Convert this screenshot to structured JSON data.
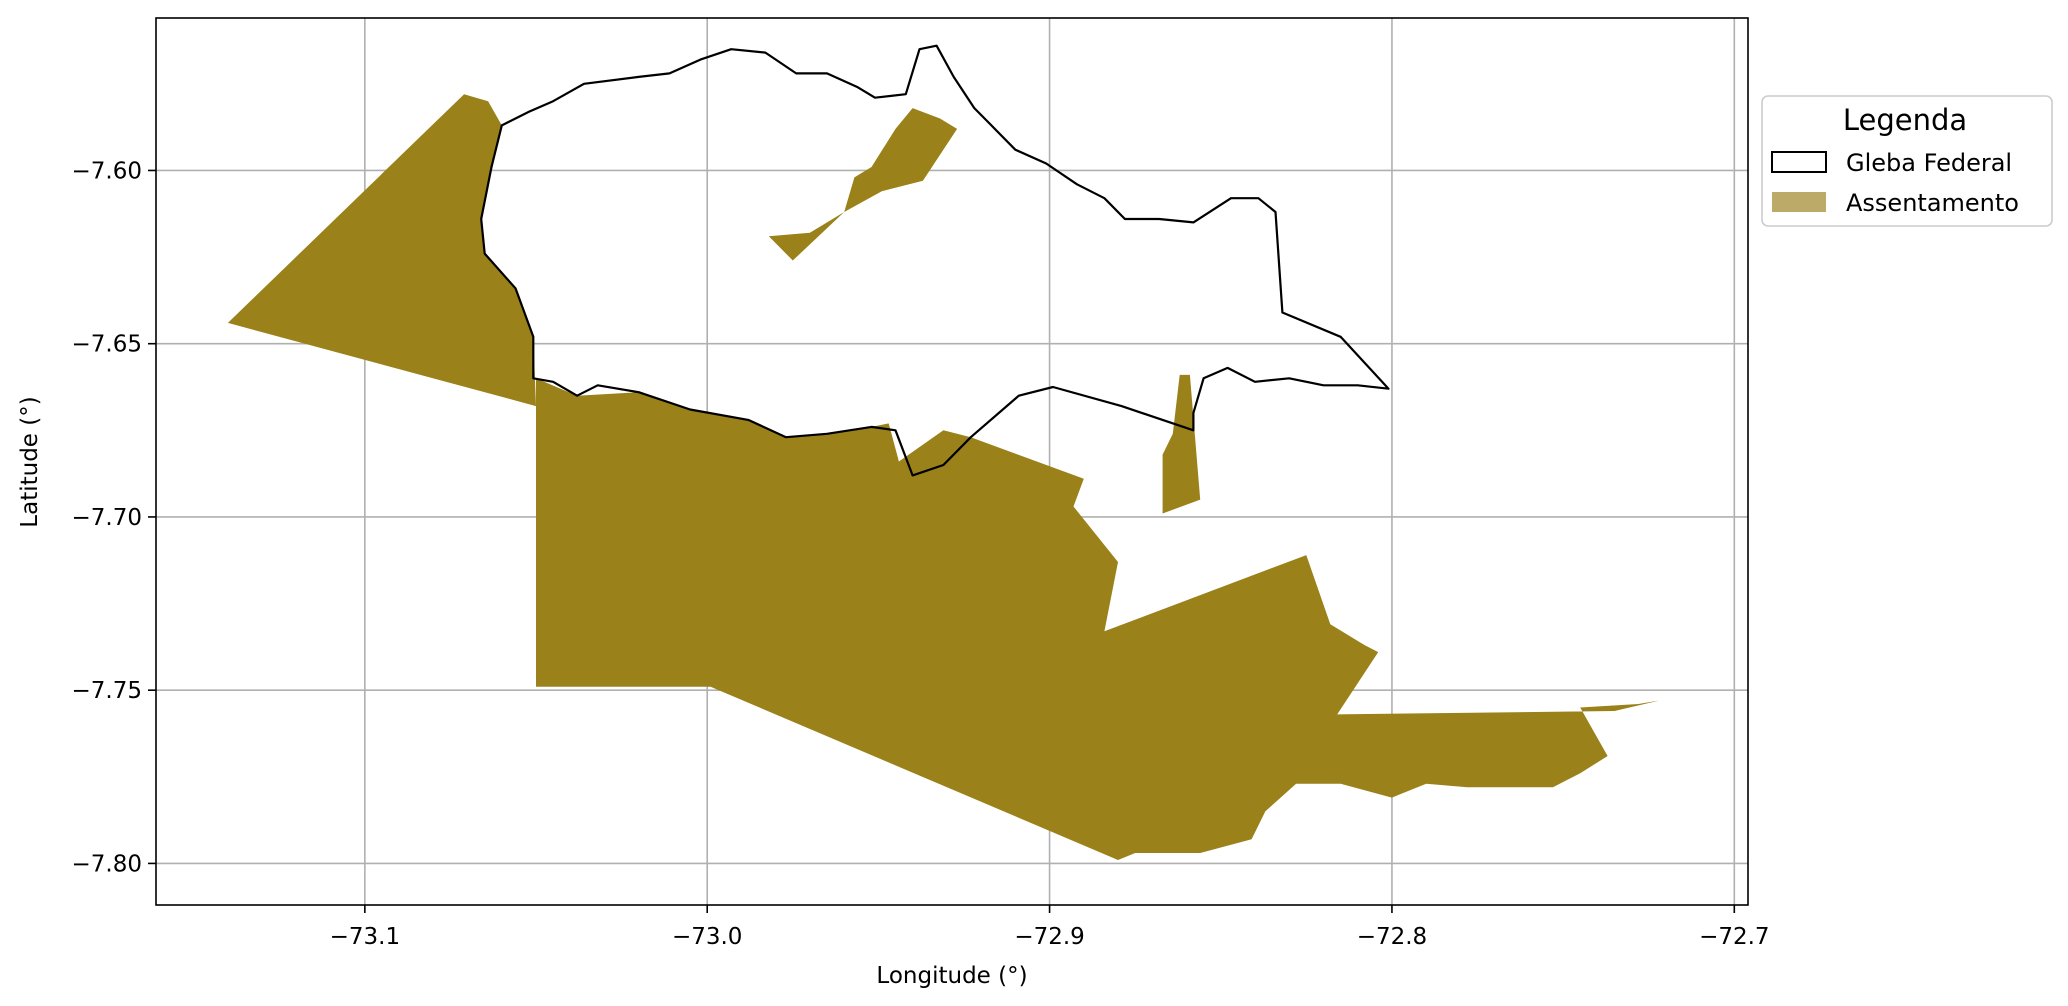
{
  "legend": {
    "title": "Legenda",
    "entries": [
      {
        "label": "Gleba Federal",
        "style": "outline",
        "stroke": "#000000",
        "fill": "none"
      },
      {
        "label": "Assentamento",
        "style": "filled",
        "fill": "#9a8119"
      }
    ]
  },
  "colors": {
    "assentamento": "#9a8119",
    "assentamento_legend": "#bcab68",
    "gleba_outline": "#000000",
    "grid": "#b0b0b0"
  },
  "axes": {
    "xlabel": "Longitude (°)",
    "ylabel": "Latitude (°)",
    "xlim": [
      -73.161,
      -72.696
    ],
    "ylim": [
      -7.812,
      -7.556
    ],
    "xticks": [
      -73.1,
      -73.0,
      -72.9,
      -72.8,
      -72.7
    ],
    "xtick_labels": [
      "−73.1",
      "−73.0",
      "−72.9",
      "−72.8",
      "−72.7"
    ],
    "yticks": [
      -7.6,
      -7.65,
      -7.7,
      -7.75,
      -7.8
    ],
    "ytick_labels": [
      "−7.60",
      "−7.65",
      "−7.70",
      "−7.75",
      "−7.80"
    ],
    "grid": true
  },
  "chart_data": {
    "type": "map",
    "xlabel": "Longitude (°)",
    "ylabel": "Latitude (°)",
    "xlim": [
      -73.161,
      -72.696
    ],
    "ylim": [
      -7.812,
      -7.556
    ],
    "grid": true,
    "legend_title": "Legenda",
    "legend_position": "upper-right-outside",
    "layers": [
      {
        "name": "Gleba Federal",
        "kind": "outline",
        "color": "#000000",
        "polygons": [
          [
            [
              -73.0508,
              -7.648
            ],
            [
              -73.0508,
              -7.66
            ],
            [
              -73.045,
              -7.661
            ],
            [
              -73.038,
              -7.665
            ],
            [
              -73.032,
              -7.662
            ],
            [
              -73.02,
              -7.664
            ],
            [
              -73.005,
              -7.669
            ],
            [
              -72.988,
              -7.672
            ],
            [
              -72.977,
              -7.677
            ],
            [
              -72.965,
              -7.676
            ],
            [
              -72.952,
              -7.674
            ],
            [
              -72.945,
              -7.675
            ],
            [
              -72.94,
              -7.688
            ],
            [
              -72.931,
              -7.685
            ],
            [
              -72.923,
              -7.677
            ],
            [
              -72.909,
              -7.665
            ],
            [
              -72.899,
              -7.6625
            ],
            [
              -72.879,
              -7.668
            ],
            [
              -72.858,
              -7.675
            ],
            [
              -72.858,
              -7.67
            ],
            [
              -72.855,
              -7.66
            ],
            [
              -72.848,
              -7.657
            ],
            [
              -72.84,
              -7.661
            ],
            [
              -72.83,
              -7.66
            ],
            [
              -72.82,
              -7.662
            ],
            [
              -72.81,
              -7.662
            ],
            [
              -72.801,
              -7.663
            ],
            [
              -72.815,
              -7.648
            ],
            [
              -72.832,
              -7.641
            ],
            [
              -72.834,
              -7.612
            ],
            [
              -72.839,
              -7.608
            ],
            [
              -72.847,
              -7.608
            ],
            [
              -72.858,
              -7.615
            ],
            [
              -72.868,
              -7.614
            ],
            [
              -72.878,
              -7.614
            ],
            [
              -72.884,
              -7.608
            ],
            [
              -72.892,
              -7.604
            ],
            [
              -72.901,
              -7.598
            ],
            [
              -72.91,
              -7.594
            ],
            [
              -72.917,
              -7.587
            ],
            [
              -72.922,
              -7.582
            ],
            [
              -72.928,
              -7.573
            ],
            [
              -72.933,
              -7.564
            ],
            [
              -72.938,
              -7.565
            ],
            [
              -72.942,
              -7.578
            ],
            [
              -72.951,
              -7.579
            ],
            [
              -72.956,
              -7.576
            ],
            [
              -72.965,
              -7.572
            ],
            [
              -72.974,
              -7.572
            ],
            [
              -72.983,
              -7.566
            ],
            [
              -72.993,
              -7.565
            ],
            [
              -73.002,
              -7.568
            ],
            [
              -73.011,
              -7.572
            ],
            [
              -73.02,
              -7.573
            ],
            [
              -73.036,
              -7.575
            ],
            [
              -73.045,
              -7.58
            ],
            [
              -73.052,
              -7.583
            ],
            [
              -73.06,
              -7.587
            ],
            [
              -73.063,
              -7.599
            ],
            [
              -73.066,
              -7.614
            ],
            [
              -73.065,
              -7.624
            ],
            [
              -73.056,
              -7.634
            ],
            [
              -73.0508,
              -7.648
            ]
          ]
        ]
      },
      {
        "name": "Assentamento",
        "kind": "filled",
        "color": "#9a8119",
        "polygons": [
          [
            [
              -73.071,
              -7.578
            ],
            [
              -73.14,
              -7.644
            ],
            [
              -73.05,
              -7.668
            ],
            [
              -73.0508,
              -7.648
            ],
            [
              -73.056,
              -7.634
            ],
            [
              -73.065,
              -7.624
            ],
            [
              -73.066,
              -7.614
            ],
            [
              -73.063,
              -7.599
            ],
            [
              -73.06,
              -7.587
            ],
            [
              -73.064,
              -7.58
            ]
          ],
          [
            [
              -73.05,
              -7.66
            ],
            [
              -73.038,
              -7.665
            ],
            [
              -73.02,
              -7.664
            ],
            [
              -73.005,
              -7.669
            ],
            [
              -72.988,
              -7.672
            ],
            [
              -72.977,
              -7.677
            ],
            [
              -72.965,
              -7.676
            ],
            [
              -72.952,
              -7.674
            ],
            [
              -72.947,
              -7.673
            ],
            [
              -72.944,
              -7.684
            ],
            [
              -72.931,
              -7.675
            ],
            [
              -72.923,
              -7.677
            ],
            [
              -72.89,
              -7.689
            ],
            [
              -72.893,
              -7.697
            ],
            [
              -72.88,
              -7.713
            ],
            [
              -72.884,
              -7.733
            ],
            [
              -72.825,
              -7.711
            ],
            [
              -72.818,
              -7.731
            ],
            [
              -72.808,
              -7.737
            ],
            [
              -72.804,
              -7.739
            ],
            [
              -72.816,
              -7.757
            ],
            [
              -72.735,
              -7.756
            ],
            [
              -72.722,
              -7.753
            ],
            [
              -72.728,
              -7.754
            ],
            [
              -72.745,
              -7.755
            ],
            [
              -72.737,
              -7.769
            ],
            [
              -72.745,
              -7.774
            ],
            [
              -72.753,
              -7.778
            ],
            [
              -72.764,
              -7.778
            ],
            [
              -72.778,
              -7.778
            ],
            [
              -72.79,
              -7.777
            ],
            [
              -72.8,
              -7.781
            ],
            [
              -72.815,
              -7.777
            ],
            [
              -72.828,
              -7.777
            ],
            [
              -72.837,
              -7.785
            ],
            [
              -72.841,
              -7.793
            ],
            [
              -72.856,
              -7.797
            ],
            [
              -72.875,
              -7.797
            ],
            [
              -72.88,
              -7.799
            ],
            [
              -72.999,
              -7.749
            ],
            [
              -73.05,
              -7.749
            ]
          ],
          [
            [
              -72.94,
              -7.582
            ],
            [
              -72.945,
              -7.588
            ],
            [
              -72.952,
              -7.599
            ],
            [
              -72.957,
              -7.602
            ],
            [
              -72.96,
              -7.612
            ],
            [
              -72.975,
              -7.626
            ],
            [
              -72.982,
              -7.619
            ],
            [
              -72.97,
              -7.618
            ],
            [
              -72.96,
              -7.612
            ],
            [
              -72.949,
              -7.606
            ],
            [
              -72.937,
              -7.603
            ],
            [
              -72.927,
              -7.588
            ],
            [
              -72.932,
              -7.585
            ]
          ],
          [
            [
              -72.862,
              -7.659
            ],
            [
              -72.859,
              -7.659
            ],
            [
              -72.856,
              -7.695
            ],
            [
              -72.867,
              -7.699
            ],
            [
              -72.867,
              -7.682
            ],
            [
              -72.864,
              -7.676
            ]
          ]
        ]
      }
    ]
  }
}
